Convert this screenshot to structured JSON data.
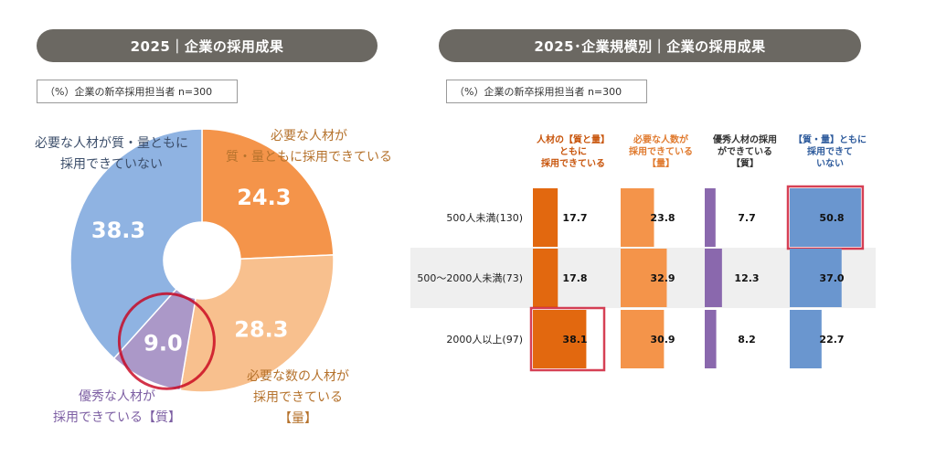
{
  "left_panel": {
    "title": "2025｜企業の採用成果",
    "note": "（%）企業の新卒採用担当者 n=300"
  },
  "right_panel": {
    "title": "2025･企業規模別｜企業の採用成果",
    "note": "（%）企業の新卒採用担当者 n=300"
  },
  "colors": {
    "pill": "#6b6862",
    "slice_quality_quantity": "#f4944a",
    "slice_quantity": "#f8c08e",
    "slice_quality": "#ab98c8",
    "slice_neither": "#8fb3e2",
    "bar_col1": "#e2680f",
    "bar_col2": "#f4944a",
    "bar_col3": "#8a68ad",
    "bar_col4": "#6a96cf",
    "highlight": "#c8001c"
  },
  "chart_data": [
    {
      "type": "pie",
      "slices": [
        {
          "label_lines": [
            "必要な人材が",
            "質・量ともに採用できている"
          ],
          "value": 24.3,
          "value_label": "24.3",
          "color_key": "slice_quality_quantity"
        },
        {
          "label_lines": [
            "必要な数の人材が",
            "採用できている",
            "【量】"
          ],
          "value": 28.3,
          "value_label": "28.3",
          "color_key": "slice_quantity"
        },
        {
          "label_lines": [
            "優秀な人材が",
            "採用できている【質】"
          ],
          "value": 9.0,
          "value_label": "9.0",
          "color_key": "slice_quality",
          "highlighted": true
        },
        {
          "label_lines": [
            "必要な人材が質・量ともに",
            "採用できていない"
          ],
          "value": 38.3,
          "value_label": "38.3",
          "color_key": "slice_neither"
        }
      ]
    },
    {
      "type": "bar",
      "orientation": "horizontal",
      "categories": [
        "500人未満(130)",
        "500～2000人未満(73)",
        "2000人以上(97)"
      ],
      "series": [
        {
          "name_lines": [
            "人材の【質と量】",
            "ともに",
            "採用できている"
          ],
          "values": [
            17.7,
            17.8,
            38.1
          ],
          "value_labels": [
            "17.7",
            "17.8",
            "38.1"
          ],
          "color_key": "bar_col1",
          "header_color": "#c8550c",
          "highlight_index": 2
        },
        {
          "name_lines": [
            "必要な人数が",
            "採用できている",
            "【量】"
          ],
          "values": [
            23.8,
            32.9,
            30.9
          ],
          "value_labels": [
            "23.8",
            "32.9",
            "30.9"
          ],
          "color_key": "bar_col2",
          "header_color": "#e07a2e"
        },
        {
          "name_lines": [
            "優秀人材の採用",
            "ができている",
            "【質】"
          ],
          "values": [
            7.7,
            12.3,
            8.2
          ],
          "value_labels": [
            "7.7",
            "12.3",
            "8.2"
          ],
          "color_key": "bar_col3",
          "header_color": "#333333"
        },
        {
          "name_lines": [
            "【質・量】ともに",
            "採用できて",
            "いない"
          ],
          "values": [
            50.8,
            37.0,
            22.7
          ],
          "value_labels": [
            "50.8",
            "37.0",
            "22.7"
          ],
          "color_key": "bar_col4",
          "header_color": "#2e5b9c",
          "highlight_index": 0
        }
      ],
      "xlim": [
        0,
        60
      ]
    }
  ]
}
